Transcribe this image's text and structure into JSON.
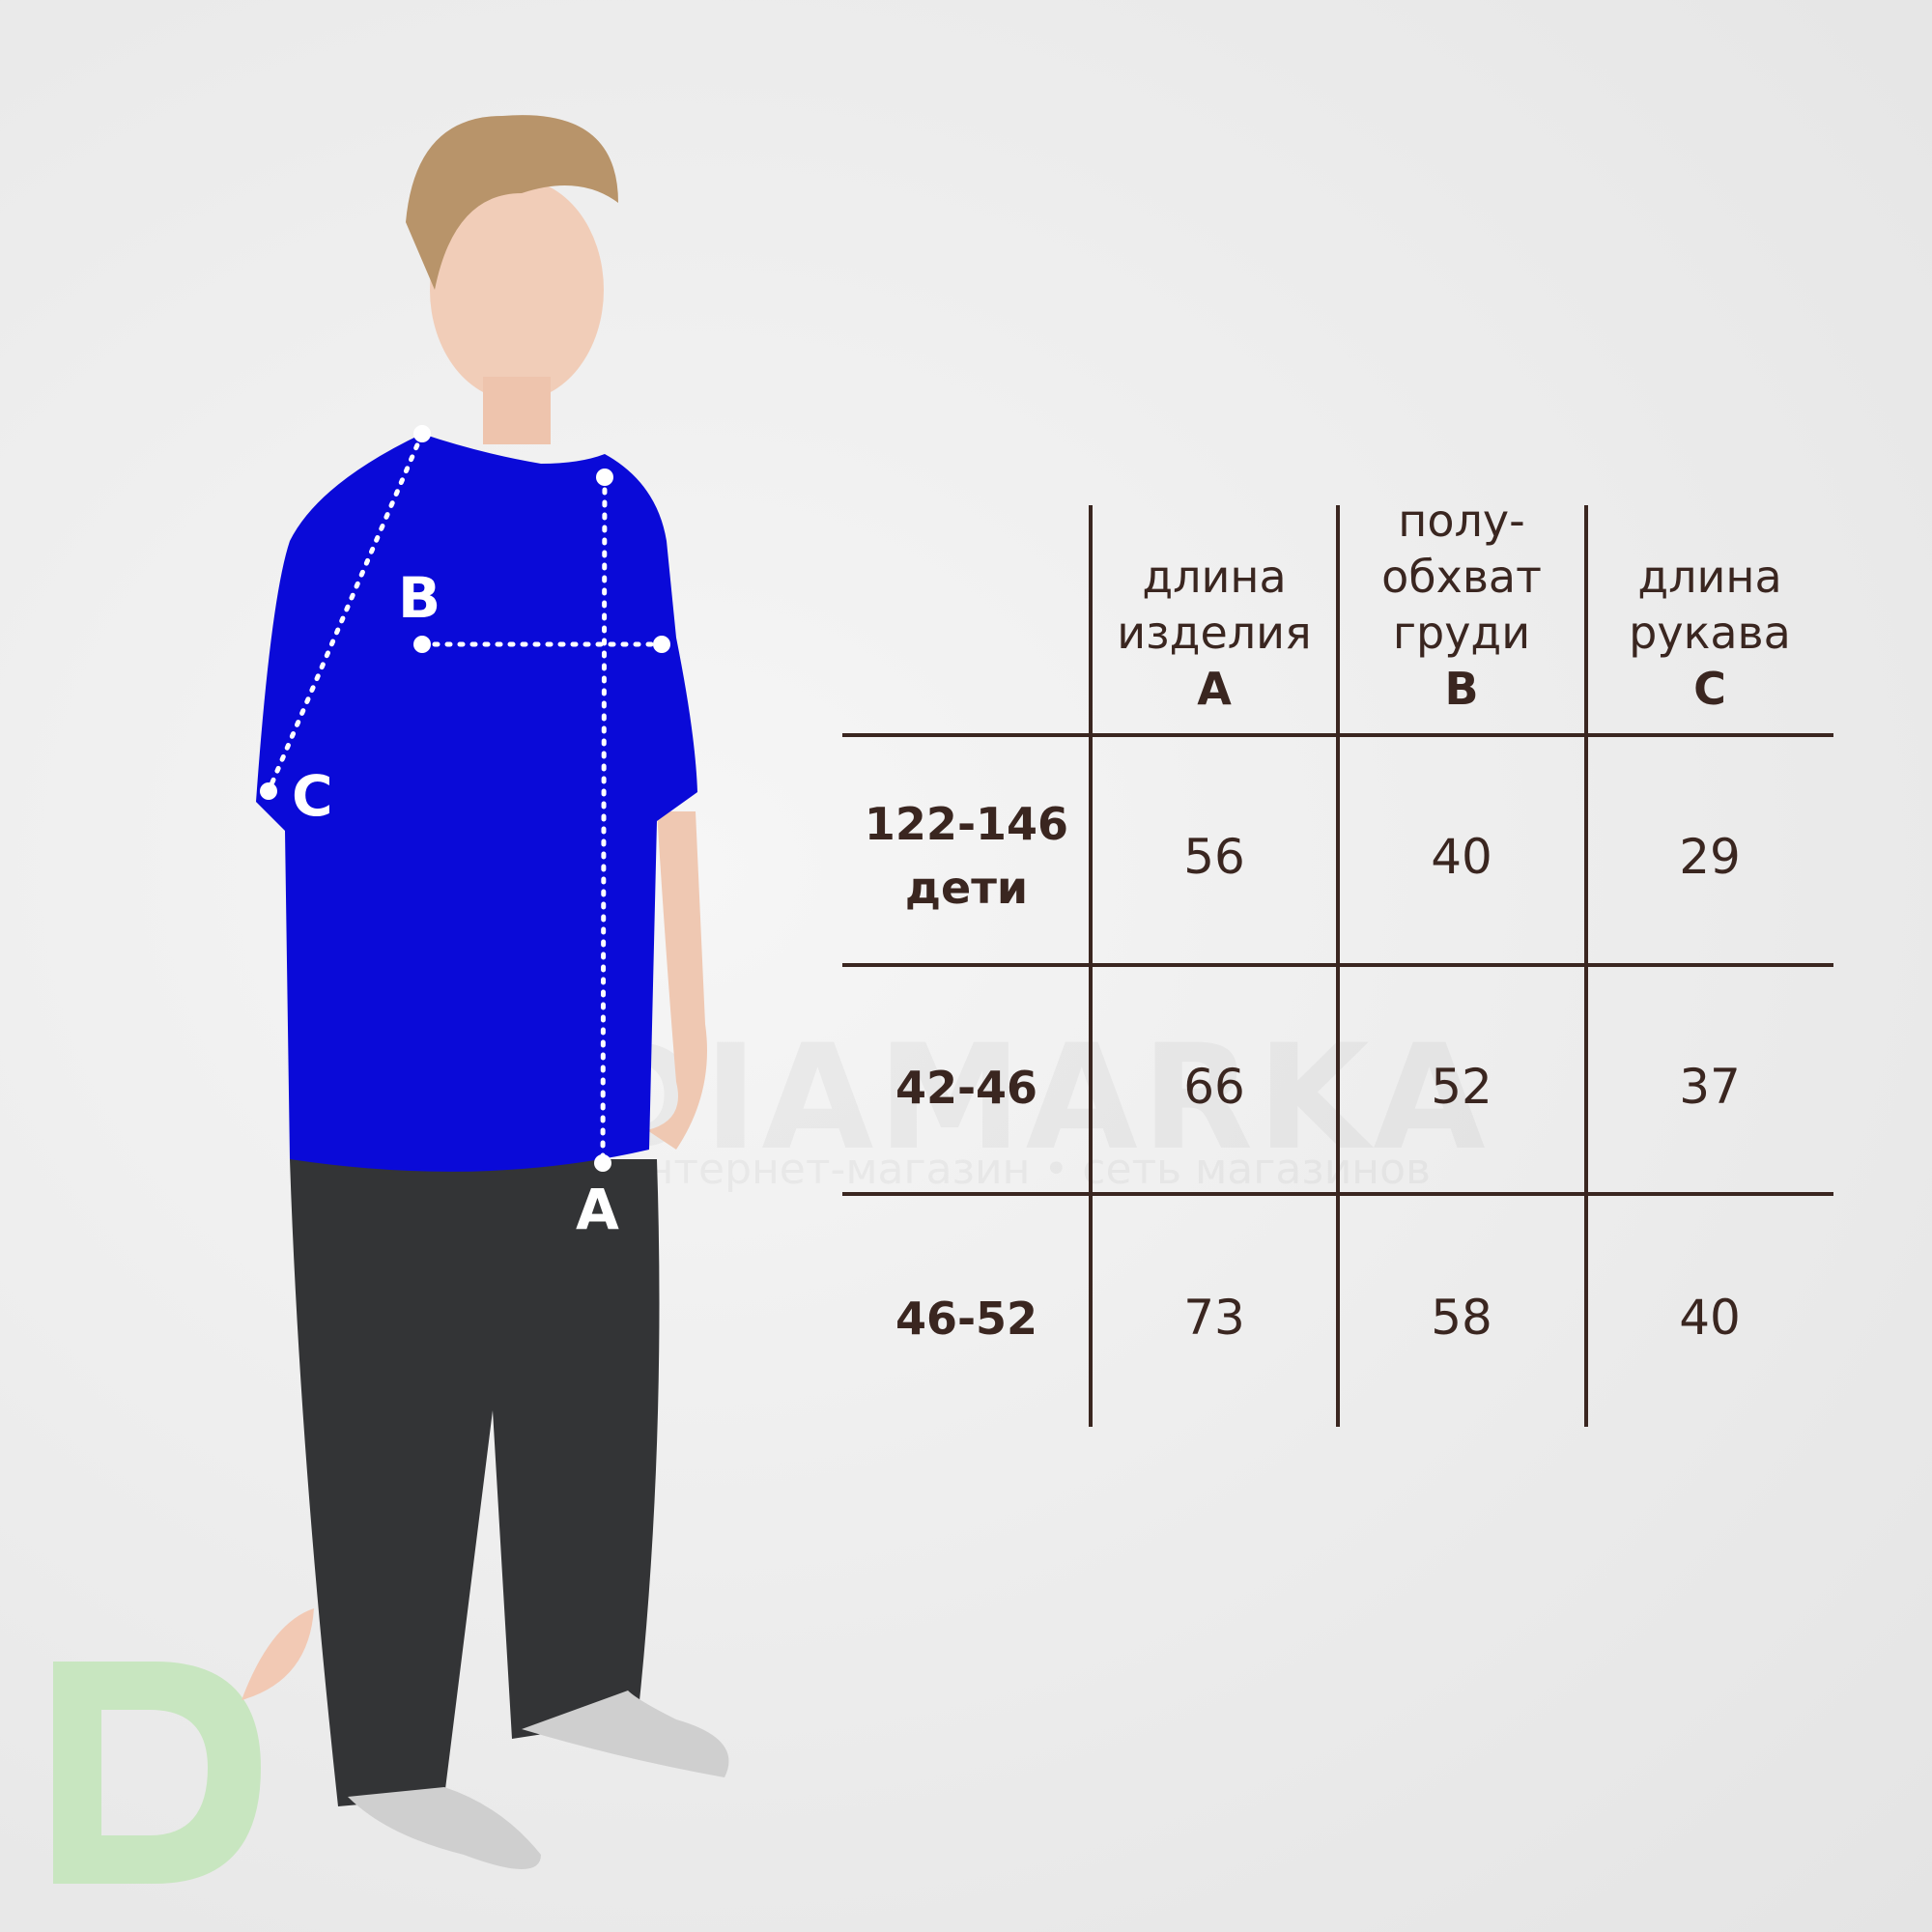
{
  "watermark": {
    "brand": "DIAMARKA",
    "tagline": "интернет-магазин • сеть магазинов"
  },
  "markers": {
    "a": "A",
    "b": "B",
    "c": "C"
  },
  "table": {
    "columns": [
      {
        "lines": [
          "",
          "длина",
          "изделия"
        ],
        "letter": "A"
      },
      {
        "lines": [
          "полу-",
          "обхват",
          "груди"
        ],
        "letter": "B"
      },
      {
        "lines": [
          "",
          "длина",
          "рукава"
        ],
        "letter": "C"
      }
    ],
    "rows": [
      {
        "size": "122-146",
        "note": "дети",
        "values": [
          "56",
          "40",
          "29"
        ]
      },
      {
        "size": "42-46",
        "note": "",
        "values": [
          "66",
          "52",
          "37"
        ]
      },
      {
        "size": "46-52",
        "note": "",
        "values": [
          "73",
          "58",
          "40"
        ]
      }
    ]
  },
  "colors": {
    "text": "#3a2620",
    "shirt": "#0a0ad8",
    "pants": "#333436",
    "logo_green": "#c8e6c0",
    "logo_leaf": "#f2c9b4"
  }
}
